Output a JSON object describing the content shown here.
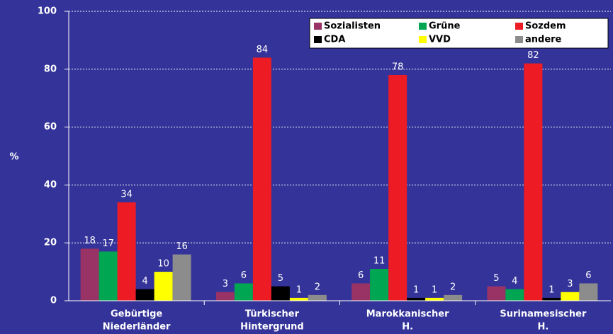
{
  "chart_data": {
    "type": "bar",
    "y_label": "%",
    "categories": [
      [
        "Gebürtige",
        "Niederländer"
      ],
      [
        "Türkischer",
        "Hintergrund"
      ],
      [
        "Marokkanischer",
        "H."
      ],
      [
        "Surinamesischer",
        "H."
      ]
    ],
    "series": [
      {
        "name": "Sozialisten",
        "color": "#993366",
        "values": [
          18,
          3,
          6,
          5
        ]
      },
      {
        "name": "Grüne",
        "color": "#00a651",
        "values": [
          17,
          6,
          11,
          4
        ]
      },
      {
        "name": "Sozdem",
        "color": "#ed1c24",
        "values": [
          34,
          84,
          78,
          82
        ]
      },
      {
        "name": "CDA",
        "color": "#000000",
        "values": [
          4,
          5,
          1,
          1
        ]
      },
      {
        "name": "VVD",
        "color": "#ffff00",
        "values": [
          10,
          1,
          1,
          3
        ]
      },
      {
        "name": "andere",
        "color": "#8c8c8c",
        "values": [
          16,
          2,
          2,
          6
        ]
      }
    ],
    "ylim": [
      0,
      100
    ],
    "yticks": [
      0,
      20,
      40,
      60,
      80,
      100
    ],
    "grid": true,
    "legend": "top-right"
  }
}
